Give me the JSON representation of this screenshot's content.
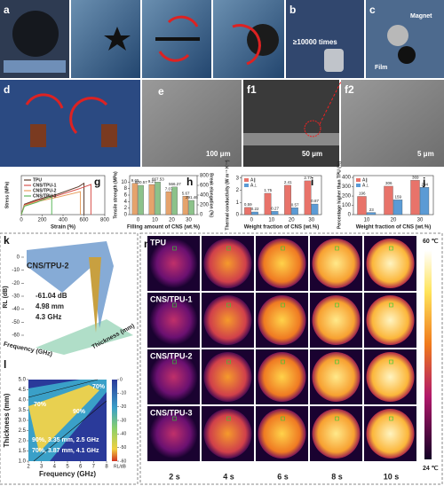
{
  "photos": {
    "labels": {
      "a": "a",
      "b": "b",
      "c": "c",
      "d": "d",
      "e": "e",
      "f1": "f1",
      "f2": "f2"
    },
    "b_cycles": "≥10000 times",
    "c_magnet": "Magnet",
    "c_film": "Film",
    "e_scale": "100 μm",
    "f1_scale": "50 μm",
    "f2_scale": "5 μm"
  },
  "chart_data": [
    {
      "type": "line",
      "label": "g",
      "xlabel": "Strain (%)",
      "ylabel": "Stress (MPa)",
      "xlim": [
        0,
        800
      ],
      "xticks": [
        0,
        200,
        400,
        600,
        800
      ],
      "ylim": [
        0,
        12
      ],
      "series": [
        {
          "name": "TPU",
          "color": "#5a3a2a",
          "x": [
            0,
            30,
            150,
            350,
            550,
            600.57,
            600.57
          ],
          "values": [
            0,
            3.2,
            4.6,
            6.3,
            8.6,
            9.65,
            0
          ]
        },
        {
          "name": "CNS/TPU-1",
          "color": "#d9534f",
          "x": [
            0,
            30,
            150,
            350,
            550,
            667.53,
            667.53
          ],
          "values": [
            0,
            3.0,
            4.3,
            5.9,
            7.9,
            9.27,
            0
          ]
        },
        {
          "name": "CNS/TPU-2",
          "color": "#e8a060",
          "x": [
            0,
            30,
            150,
            350,
            566.27,
            566.27
          ],
          "values": [
            0,
            2.8,
            4.0,
            5.4,
            7.07,
            0
          ]
        },
        {
          "name": "CNS/TPU-3",
          "color": "#5cb85c",
          "x": [
            0,
            30,
            150,
            291.46,
            291.46
          ],
          "values": [
            0,
            2.6,
            3.8,
            5.67,
            0
          ]
        }
      ]
    },
    {
      "type": "bar",
      "label": "h",
      "xlabel": "Filling amount of CNS (wt.%)",
      "ylabel": "Tensile strength (MPa)",
      "y2label": "Break elongation (%)",
      "categories": [
        "0",
        "10",
        "20",
        "30"
      ],
      "ylim": [
        0,
        12
      ],
      "yticks": [
        0,
        2,
        4,
        6,
        8,
        10
      ],
      "y2lim": [
        0,
        800
      ],
      "y2ticks": [
        0,
        200,
        400,
        600,
        800
      ],
      "series": [
        {
          "color": "#e5a36c",
          "values": [
            9.65,
            9.27,
            7.07,
            5.67
          ]
        },
        {
          "color": "#8cc28a",
          "axis": "y2",
          "values": [
            600.57,
            667.53,
            566.27,
            291.46
          ]
        }
      ]
    },
    {
      "type": "bar",
      "label": "i",
      "xlabel": "Weight fraction of CNS (wt.%)",
      "ylabel": "Thermal conductivity (W m⁻¹ K⁻¹)",
      "categories": [
        "0",
        "10",
        "20",
        "30"
      ],
      "ylim": [
        0,
        3.2
      ],
      "yticks": [
        0,
        1,
        2,
        3
      ],
      "series": [
        {
          "name": "A∥",
          "color": "#e8736a",
          "values": [
            0.59,
            1.75,
            2.41,
            2.77
          ]
        },
        {
          "name": "A⊥",
          "color": "#5b9bd5",
          "values": [
            0.22,
            0.27,
            0.57,
            0.87
          ]
        }
      ]
    },
    {
      "type": "bar",
      "label": "j",
      "xlabel": "Weight fraction of CNS (wt.%)",
      "ylabel": "Percentage higher than TPU (%)",
      "categories": [
        "10",
        "20",
        "30"
      ],
      "ylim": [
        0,
        420
      ],
      "yticks": [
        0,
        100,
        200,
        300,
        400
      ],
      "series": [
        {
          "name": "A∥",
          "color": "#e8736a",
          "values": [
            196,
            306,
            369
          ]
        },
        {
          "name": "A⊥",
          "color": "#5b9bd5",
          "values": [
            23,
            159,
            294
          ]
        }
      ]
    },
    {
      "type": "surface",
      "label": "k",
      "title": "CNS/TPU-2",
      "annotations": [
        "-61.04 dB",
        "4.98 mm",
        "4.3 GHz"
      ],
      "zlabel": "RL (dB)",
      "xlabel": "Frequency (GHz)",
      "ylabel": "Thickness (mm)",
      "zlim": [
        0,
        -60
      ],
      "zticks": [
        0,
        -10,
        -20,
        -30,
        -40,
        -50,
        -60
      ]
    },
    {
      "type": "contour",
      "label": "l",
      "xlabel": "Frequency (GHz)",
      "ylabel": "Thickness (mm)",
      "clabel": "RL/dB",
      "xlim": [
        2,
        8
      ],
      "xticks": [
        2,
        3,
        4,
        5,
        6,
        7,
        8
      ],
      "ylim": [
        1,
        5
      ],
      "yticks": [
        {
          "value": 1,
          "label": "1.0"
        },
        {
          "value": 1.5,
          "label": "1.5"
        },
        {
          "value": 2,
          "label": "2.0"
        },
        {
          "value": 2.5,
          "label": "2.5"
        },
        {
          "value": 3,
          "label": "3.0"
        },
        {
          "value": 3.5,
          "label": "3.5"
        },
        {
          "value": 4,
          "label": "4.0"
        },
        {
          "value": 4.5,
          "label": "4.5"
        },
        {
          "value": 5,
          "label": "5.0"
        }
      ],
      "clim": [
        0,
        -60
      ],
      "cticks": [
        0,
        -10,
        -20,
        -30,
        -40,
        -50,
        -60
      ],
      "annotations": [
        "70%",
        "90%",
        "70%",
        "90%, 3.35 mm, 2.5 GHz",
        "70%, 3.87 mm, 4.1 GHz"
      ]
    }
  ],
  "thermal": {
    "label": "m",
    "rows": [
      "TPU",
      "CNS/TPU-1",
      "CNS/TPU-2",
      "CNS/TPU-3"
    ],
    "columns": [
      "2 s",
      "4 s",
      "6 s",
      "8 s",
      "10 s"
    ],
    "scale_max": "60 ℃",
    "scale_min": "24 ℃"
  }
}
